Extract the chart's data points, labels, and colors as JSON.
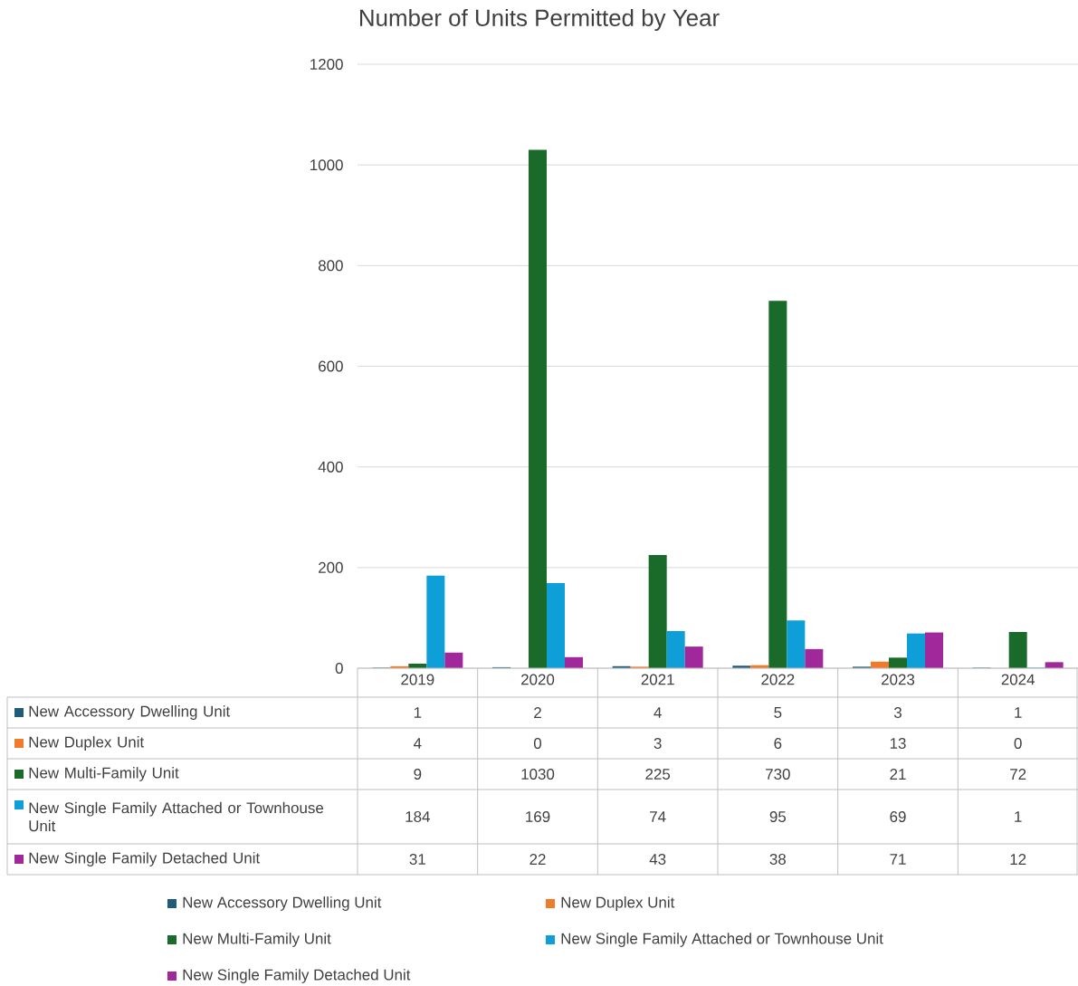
{
  "chart_data": {
    "type": "bar",
    "title": "Number of Units Permitted by Year",
    "categories": [
      "2019",
      "2020",
      "2021",
      "2022",
      "2023",
      "2024"
    ],
    "series": [
      {
        "name": "New Accessory Dwelling Unit",
        "color": "#1f5c7a",
        "values": [
          1,
          2,
          4,
          5,
          3,
          1
        ]
      },
      {
        "name": "New Duplex Unit",
        "color": "#f07b2a",
        "values": [
          4,
          0,
          3,
          6,
          13,
          0
        ]
      },
      {
        "name": "New Multi-Family Unit",
        "color": "#1a6b2a",
        "values": [
          9,
          1030,
          225,
          730,
          21,
          72
        ]
      },
      {
        "name": "New Single Family Attached or Townhouse Unit",
        "color": "#0e9fd8",
        "values": [
          184,
          169,
          74,
          95,
          69,
          1
        ]
      },
      {
        "name": "New Single Family Detached Unit",
        "color": "#a0289a",
        "values": [
          31,
          22,
          43,
          38,
          71,
          12
        ]
      }
    ],
    "ylim": [
      0,
      1200
    ],
    "yticks": [
      0,
      200,
      400,
      600,
      800,
      1000,
      1200
    ],
    "grid": "y",
    "legend": "bottom",
    "data_labels": true
  }
}
